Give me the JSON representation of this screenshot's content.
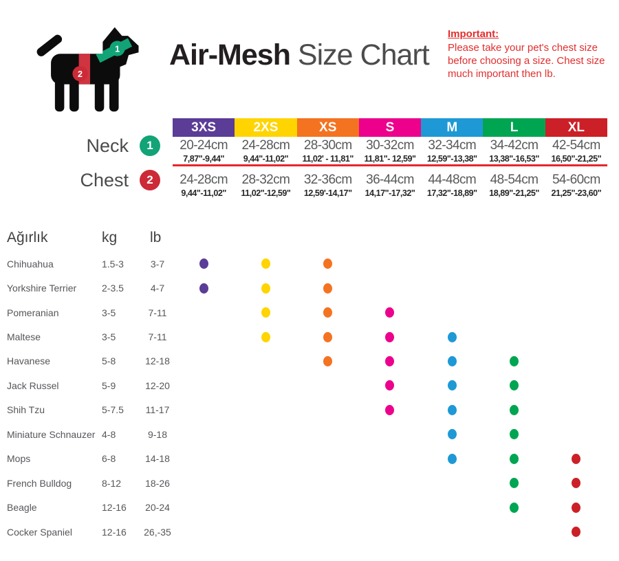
{
  "page": {
    "title_bold": "Air-Mesh",
    "title_light": " Size Chart"
  },
  "important": {
    "heading": "Important:",
    "text": "Please take your pet's chest size before choosing a size. Chest size much important then lb."
  },
  "measure": {
    "neck_label": "Neck",
    "chest_label": "Chest",
    "neck_badge": "1",
    "chest_badge": "2"
  },
  "dog_diagram": {
    "neck_badge": "1",
    "chest_badge": "2"
  },
  "colors": {
    "badge_green": "#12a377",
    "badge_red": "#cc2a36",
    "harness_neck_green": "#12a377",
    "harness_chest_red": "#cf3440",
    "divider_red": "#e8252a",
    "important_red": "#e22d2d",
    "dog_black": "#0d0c0d"
  },
  "sizes": [
    {
      "label": "3XS",
      "color": "#5b3c97",
      "neck_cm": "20-24cm",
      "neck_in": "7,87\"-9,44\"",
      "chest_cm": "24-28cm",
      "chest_in": "9,44\"-11,02\""
    },
    {
      "label": "2XS",
      "color": "#ffd400",
      "neck_cm": "24-28cm",
      "neck_in": "9,44\"-11,02\"",
      "chest_cm": "28-32cm",
      "chest_in": "11,02\"-12,59\""
    },
    {
      "label": "XS",
      "color": "#f47321",
      "neck_cm": "28-30cm",
      "neck_in": "11,02' - 11,81\"",
      "chest_cm": "32-36cm",
      "chest_in": "12,59'-14,17\""
    },
    {
      "label": "S",
      "color": "#ec008c",
      "neck_cm": "30-32cm",
      "neck_in": "11,81\"- 12,59\"",
      "chest_cm": "36-44cm",
      "chest_in": "14,17\"-17,32\""
    },
    {
      "label": "M",
      "color": "#1e99d5",
      "neck_cm": "32-34cm",
      "neck_in": "12,59\"-13,38\"",
      "chest_cm": "44-48cm",
      "chest_in": "17,32\"-18,89\""
    },
    {
      "label": "L",
      "color": "#00a551",
      "neck_cm": "34-42cm",
      "neck_in": "13,38\"-16,53\"",
      "chest_cm": "48-54cm",
      "chest_in": "18,89\"-21,25\""
    },
    {
      "label": "XL",
      "color": "#cb2027",
      "neck_cm": "42-54cm",
      "neck_in": "16,50\"-21,25\"",
      "chest_cm": "54-60cm",
      "chest_in": "21,25\"-23,60\""
    }
  ],
  "weight_table": {
    "headers": {
      "breed": "Ağırlık",
      "kg": "kg",
      "lb": "lb"
    },
    "breeds": [
      {
        "name": "Chihuahua",
        "kg": "1.5-3",
        "lb": "3-7",
        "sizes": [
          0,
          1,
          2
        ]
      },
      {
        "name": "Yorkshire Terrier",
        "kg": "2-3.5",
        "lb": "4-7",
        "sizes": [
          0,
          1,
          2
        ]
      },
      {
        "name": "Pomeranian",
        "kg": "3-5",
        "lb": "7-11",
        "sizes": [
          1,
          2,
          3
        ]
      },
      {
        "name": "Maltese",
        "kg": "3-5",
        "lb": "7-11",
        "sizes": [
          1,
          2,
          3,
          4
        ]
      },
      {
        "name": "Havanese",
        "kg": "5-8",
        "lb": "12-18",
        "sizes": [
          2,
          3,
          4,
          5
        ]
      },
      {
        "name": "Jack Russel",
        "kg": "5-9",
        "lb": "12-20",
        "sizes": [
          3,
          4,
          5
        ]
      },
      {
        "name": "Shih Tzu",
        "kg": "5-7.5",
        "lb": "11-17",
        "sizes": [
          3,
          4,
          5
        ]
      },
      {
        "name": "Miniature Schnauzer",
        "kg": "4-8",
        "lb": "9-18",
        "sizes": [
          4,
          5
        ]
      },
      {
        "name": "Mops",
        "kg": "6-8",
        "lb": "14-18",
        "sizes": [
          4,
          5,
          6
        ]
      },
      {
        "name": "French Bulldog",
        "kg": "8-12",
        "lb": "18-26",
        "sizes": [
          5,
          6
        ]
      },
      {
        "name": "Beagle",
        "kg": "12-16",
        "lb": "20-24",
        "sizes": [
          5,
          6
        ]
      },
      {
        "name": "Cocker Spaniel",
        "kg": "12-16",
        "lb": "26,-35",
        "sizes": [
          6
        ]
      }
    ]
  },
  "chart_data": {
    "type": "table",
    "title": "Air-Mesh Size Chart",
    "size_columns": [
      "3XS",
      "2XS",
      "XS",
      "S",
      "M",
      "L",
      "XL"
    ],
    "neck_cm": [
      "20-24",
      "24-28",
      "28-30",
      "30-32",
      "32-34",
      "34-42",
      "42-54"
    ],
    "neck_inches": [
      "7,87-9,44",
      "9,44-11,02",
      "11,02-11,81",
      "11,81-12,59",
      "12,59-13,38",
      "13,38-16,53",
      "16,50-21,25"
    ],
    "chest_cm": [
      "24-28",
      "28-32",
      "32-36",
      "36-44",
      "44-48",
      "48-54",
      "54-60"
    ],
    "chest_inches": [
      "9,44-11,02",
      "11,02-12,59",
      "12,59-14,17",
      "14,17-17,32",
      "17,32-18,89",
      "18,89-21,25",
      "21,25-23,60"
    ],
    "breed_size_matrix": {
      "Chihuahua": [
        "3XS",
        "2XS",
        "XS"
      ],
      "Yorkshire Terrier": [
        "3XS",
        "2XS",
        "XS"
      ],
      "Pomeranian": [
        "2XS",
        "XS",
        "S"
      ],
      "Maltese": [
        "2XS",
        "XS",
        "S",
        "M"
      ],
      "Havanese": [
        "XS",
        "S",
        "M",
        "L"
      ],
      "Jack Russel": [
        "S",
        "M",
        "L"
      ],
      "Shih Tzu": [
        "S",
        "M",
        "L"
      ],
      "Miniature Schnauzer": [
        "M",
        "L"
      ],
      "Mops": [
        "M",
        "L",
        "XL"
      ],
      "French Bulldog": [
        "L",
        "XL"
      ],
      "Beagle": [
        "L",
        "XL"
      ],
      "Cocker Spaniel": [
        "XL"
      ]
    }
  }
}
